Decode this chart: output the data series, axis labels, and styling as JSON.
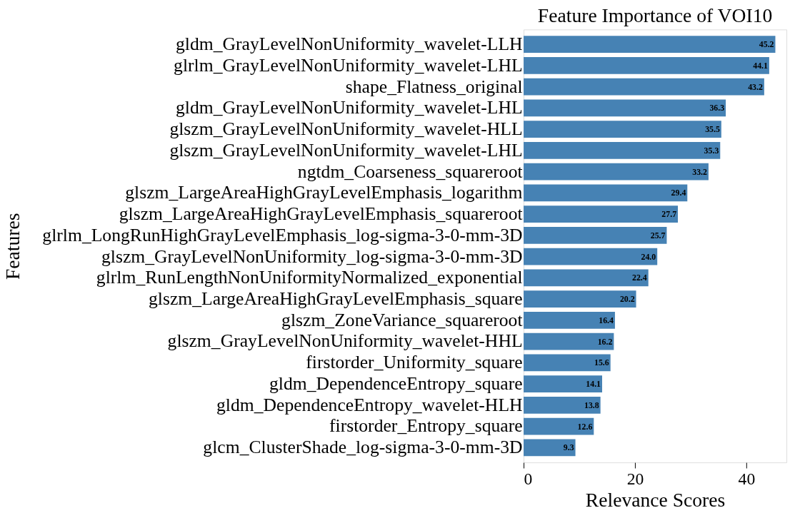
{
  "chart_data": {
    "type": "bar",
    "orientation": "horizontal",
    "title": "Feature Importance of VOI10",
    "xlabel": "Relevance Scores",
    "ylabel": "Features",
    "categories": [
      "gldm_GrayLevelNonUniformity_wavelet-LLH",
      "glrlm_GrayLevelNonUniformity_wavelet-LHL",
      "shape_Flatness_original",
      "gldm_GrayLevelNonUniformity_wavelet-LHL",
      "glszm_GrayLevelNonUniformity_wavelet-HLL",
      "glszm_GrayLevelNonUniformity_wavelet-LHL",
      "ngtdm_Coarseness_squareroot",
      "glszm_LargeAreaHighGrayLevelEmphasis_logarithm",
      "glszm_LargeAreaHighGrayLevelEmphasis_squareroot",
      "glrlm_LongRunHighGrayLevelEmphasis_log-sigma-3-0-mm-3D",
      "glszm_GrayLevelNonUniformity_log-sigma-3-0-mm-3D",
      "glrlm_RunLengthNonUniformityNormalized_exponential",
      "glszm_LargeAreaHighGrayLevelEmphasis_square",
      "glszm_ZoneVariance_squareroot",
      "glszm_GrayLevelNonUniformity_wavelet-HHL",
      "firstorder_Uniformity_square",
      "gldm_DependenceEntropy_square",
      "gldm_DependenceEntropy_wavelet-HLH",
      "firstorder_Entropy_square",
      "glcm_ClusterShade_log-sigma-3-0-mm-3D"
    ],
    "values": [
      45.2,
      44.1,
      43.2,
      36.3,
      35.5,
      35.3,
      33.2,
      29.4,
      27.7,
      25.7,
      24.0,
      22.4,
      20.2,
      16.4,
      16.2,
      15.6,
      14.1,
      13.8,
      12.6,
      9.3
    ],
    "value_labels": [
      "45.2",
      "44.1",
      "43.2",
      "36.3",
      "35.5",
      "35.3",
      "33.2",
      "29.4",
      "27.7",
      "25.7",
      "24.0",
      "22.4",
      "20.2",
      "16.4",
      "16.2",
      "15.6",
      "14.1",
      "13.8",
      "12.6",
      "9.3"
    ],
    "color": "#4682b4",
    "xlim": [
      0,
      47.2
    ],
    "xticks": [
      0,
      20,
      40
    ],
    "grid": false
  }
}
